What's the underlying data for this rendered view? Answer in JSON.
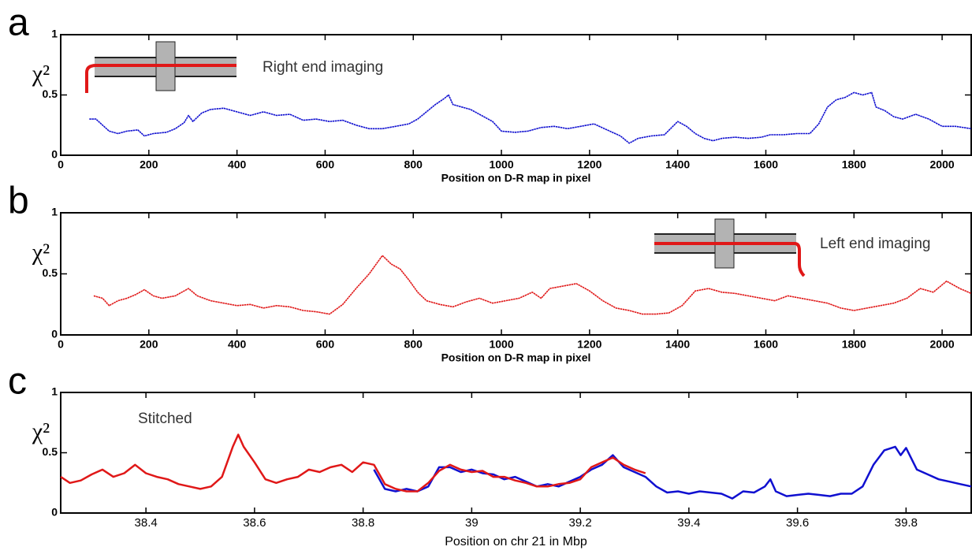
{
  "chart_data": [
    {
      "type": "line",
      "panel_label": "a",
      "x_label": "Position on D-R map in pixel",
      "y_label": "χ²",
      "annotation": "Right end imaging",
      "xlim": [
        0,
        2066
      ],
      "ylim": [
        0,
        1
      ],
      "xticks": [
        0,
        200,
        400,
        600,
        800,
        1000,
        1200,
        1400,
        1600,
        1800,
        2000
      ],
      "yticks": [
        0,
        0.5,
        1
      ],
      "series": [
        {
          "color": "#1010d0",
          "x": [
            65,
            80,
            95,
            110,
            130,
            150,
            175,
            190,
            210,
            240,
            260,
            280,
            290,
            300,
            320,
            340,
            370,
            400,
            430,
            460,
            490,
            520,
            550,
            580,
            610,
            640,
            670,
            700,
            730,
            760,
            790,
            810,
            830,
            850,
            870,
            880,
            890,
            910,
            930,
            950,
            980,
            1000,
            1030,
            1060,
            1090,
            1120,
            1150,
            1180,
            1210,
            1240,
            1270,
            1290,
            1310,
            1340,
            1370,
            1400,
            1420,
            1440,
            1460,
            1480,
            1500,
            1530,
            1560,
            1590,
            1610,
            1640,
            1670,
            1700,
            1720,
            1740,
            1760,
            1780,
            1800,
            1820,
            1840,
            1850,
            1870,
            1890,
            1910,
            1940,
            1970,
            2000,
            2030,
            2066
          ],
          "values": [
            0.3,
            0.3,
            0.25,
            0.2,
            0.18,
            0.2,
            0.21,
            0.16,
            0.18,
            0.19,
            0.22,
            0.27,
            0.33,
            0.28,
            0.35,
            0.38,
            0.39,
            0.36,
            0.33,
            0.36,
            0.33,
            0.34,
            0.29,
            0.3,
            0.28,
            0.29,
            0.25,
            0.22,
            0.22,
            0.24,
            0.26,
            0.3,
            0.36,
            0.42,
            0.47,
            0.5,
            0.42,
            0.4,
            0.38,
            0.34,
            0.28,
            0.2,
            0.19,
            0.2,
            0.23,
            0.24,
            0.22,
            0.24,
            0.26,
            0.21,
            0.16,
            0.1,
            0.14,
            0.16,
            0.17,
            0.28,
            0.24,
            0.18,
            0.14,
            0.12,
            0.14,
            0.15,
            0.14,
            0.15,
            0.17,
            0.17,
            0.18,
            0.18,
            0.26,
            0.4,
            0.46,
            0.48,
            0.52,
            0.5,
            0.52,
            0.4,
            0.37,
            0.32,
            0.3,
            0.34,
            0.3,
            0.24,
            0.24,
            0.22
          ]
        }
      ]
    },
    {
      "type": "line",
      "panel_label": "b",
      "x_label": "Position on D-R map in pixel",
      "y_label": "χ²",
      "annotation": "Left end imaging",
      "xlim": [
        0,
        2066
      ],
      "ylim": [
        0,
        1
      ],
      "xticks": [
        0,
        200,
        400,
        600,
        800,
        1000,
        1200,
        1400,
        1600,
        1800,
        2000
      ],
      "yticks": [
        0,
        0.5,
        1
      ],
      "series": [
        {
          "color": "#e01818",
          "x": [
            75,
            95,
            110,
            130,
            150,
            170,
            190,
            210,
            230,
            260,
            290,
            310,
            340,
            370,
            400,
            430,
            460,
            490,
            520,
            550,
            580,
            610,
            640,
            670,
            700,
            720,
            730,
            750,
            770,
            790,
            810,
            830,
            860,
            890,
            920,
            950,
            980,
            1010,
            1040,
            1070,
            1090,
            1110,
            1140,
            1170,
            1200,
            1230,
            1260,
            1290,
            1320,
            1350,
            1380,
            1410,
            1440,
            1470,
            1500,
            1530,
            1560,
            1590,
            1620,
            1650,
            1680,
            1710,
            1740,
            1770,
            1800,
            1830,
            1860,
            1890,
            1920,
            1950,
            1980,
            2010,
            2040,
            2066
          ],
          "values": [
            0.32,
            0.3,
            0.24,
            0.28,
            0.3,
            0.33,
            0.37,
            0.32,
            0.3,
            0.32,
            0.38,
            0.32,
            0.28,
            0.26,
            0.24,
            0.25,
            0.22,
            0.24,
            0.23,
            0.2,
            0.19,
            0.17,
            0.25,
            0.38,
            0.5,
            0.6,
            0.65,
            0.58,
            0.54,
            0.45,
            0.35,
            0.28,
            0.25,
            0.23,
            0.27,
            0.3,
            0.26,
            0.28,
            0.3,
            0.35,
            0.3,
            0.38,
            0.4,
            0.42,
            0.36,
            0.28,
            0.22,
            0.2,
            0.17,
            0.17,
            0.18,
            0.24,
            0.36,
            0.38,
            0.35,
            0.34,
            0.32,
            0.3,
            0.28,
            0.32,
            0.3,
            0.28,
            0.26,
            0.22,
            0.2,
            0.22,
            0.24,
            0.26,
            0.3,
            0.38,
            0.35,
            0.44,
            0.38,
            0.34
          ]
        }
      ]
    },
    {
      "type": "line",
      "panel_label": "c",
      "x_label": "Position on chr 21 in Mbp",
      "y_label": "χ²",
      "annotation": "Stitched",
      "xlim": [
        38.243,
        39.92
      ],
      "ylim": [
        0,
        1
      ],
      "xticks": [
        38.4,
        38.6,
        38.8,
        39,
        39.2,
        39.4,
        39.6,
        39.8
      ],
      "yticks": [
        0,
        0.5,
        1
      ],
      "series": [
        {
          "color": "#1010d0",
          "x": [
            38.82,
            38.84,
            38.86,
            38.88,
            38.9,
            38.92,
            38.94,
            38.96,
            38.98,
            39.0,
            39.02,
            39.04,
            39.06,
            39.08,
            39.1,
            39.12,
            39.14,
            39.16,
            39.18,
            39.2,
            39.22,
            39.24,
            39.26,
            39.28,
            39.3,
            39.32,
            39.34,
            39.36,
            39.38,
            39.4,
            39.42,
            39.44,
            39.46,
            39.48,
            39.5,
            39.52,
            39.54,
            39.55,
            39.56,
            39.58,
            39.6,
            39.62,
            39.64,
            39.66,
            39.68,
            39.7,
            39.72,
            39.74,
            39.76,
            39.78,
            39.79,
            39.8,
            39.82,
            39.84,
            39.86,
            39.88,
            39.9,
            39.92
          ],
          "values": [
            0.36,
            0.2,
            0.18,
            0.2,
            0.18,
            0.22,
            0.38,
            0.38,
            0.34,
            0.36,
            0.33,
            0.32,
            0.28,
            0.3,
            0.26,
            0.22,
            0.24,
            0.22,
            0.26,
            0.3,
            0.36,
            0.4,
            0.48,
            0.38,
            0.34,
            0.3,
            0.22,
            0.17,
            0.18,
            0.16,
            0.18,
            0.17,
            0.16,
            0.12,
            0.18,
            0.17,
            0.22,
            0.28,
            0.18,
            0.14,
            0.15,
            0.16,
            0.15,
            0.14,
            0.16,
            0.16,
            0.22,
            0.4,
            0.52,
            0.55,
            0.48,
            0.54,
            0.36,
            0.32,
            0.28,
            0.26,
            0.24,
            0.22
          ]
        },
        {
          "color": "#e01818",
          "x": [
            38.243,
            38.26,
            38.28,
            38.3,
            38.32,
            38.34,
            38.36,
            38.38,
            38.4,
            38.42,
            38.44,
            38.46,
            38.48,
            38.5,
            38.52,
            38.54,
            38.56,
            38.57,
            38.58,
            38.6,
            38.62,
            38.64,
            38.66,
            38.68,
            38.7,
            38.72,
            38.74,
            38.76,
            38.78,
            38.8,
            38.82,
            38.84,
            38.86,
            38.88,
            38.9,
            38.92,
            38.94,
            38.96,
            38.98,
            39.0,
            39.02,
            39.04,
            39.06,
            39.08,
            39.1,
            39.12,
            39.14,
            39.16,
            39.18,
            39.2,
            39.22,
            39.24,
            39.26,
            39.28,
            39.3,
            39.32
          ],
          "values": [
            0.3,
            0.25,
            0.27,
            0.32,
            0.36,
            0.3,
            0.33,
            0.4,
            0.33,
            0.3,
            0.28,
            0.24,
            0.22,
            0.2,
            0.22,
            0.3,
            0.55,
            0.65,
            0.55,
            0.42,
            0.28,
            0.25,
            0.28,
            0.3,
            0.36,
            0.34,
            0.38,
            0.4,
            0.34,
            0.42,
            0.4,
            0.24,
            0.2,
            0.18,
            0.18,
            0.25,
            0.35,
            0.4,
            0.36,
            0.34,
            0.35,
            0.3,
            0.3,
            0.27,
            0.25,
            0.22,
            0.22,
            0.24,
            0.25,
            0.28,
            0.38,
            0.42,
            0.46,
            0.4,
            0.36,
            0.33
          ]
        }
      ]
    }
  ]
}
